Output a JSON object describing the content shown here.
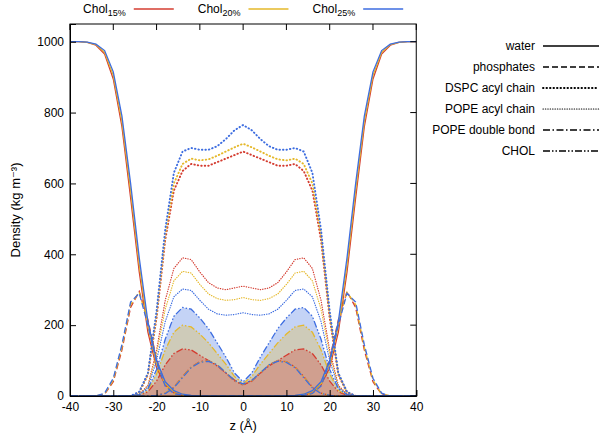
{
  "chart_data": {
    "type": "line",
    "x_label": "z (Å)",
    "y_label": "Density (kg m⁻³)",
    "x": [
      -40,
      -38,
      -36,
      -34,
      -32,
      -30,
      -28,
      -26,
      -24,
      -22,
      -20,
      -18,
      -16,
      -14,
      -12,
      -10,
      -8,
      -6,
      -4,
      -2,
      0,
      2,
      4,
      6,
      8,
      10,
      12,
      14,
      16,
      18,
      20,
      22,
      24,
      26,
      28,
      30,
      32,
      34,
      36,
      38,
      40
    ],
    "xlim": [
      -40,
      40
    ],
    "xticks": [
      -40,
      -30,
      -20,
      -10,
      0,
      10,
      20,
      30,
      40
    ],
    "ylim": [
      0,
      1050
    ],
    "yticks": [
      0,
      200,
      400,
      600,
      800,
      1000
    ],
    "grid": false,
    "legend": "top",
    "series": [
      {
        "name": "Chol15%",
        "color": "#d43c30",
        "components": [
          {
            "name": "water",
            "line_style": "solid",
            "values": [
              1000,
              1000,
              998,
              990,
              965,
              895,
              760,
              560,
              350,
              180,
              80,
              32,
              12,
              4,
              1,
              0,
              0,
              0,
              0,
              0,
              0,
              0,
              0,
              0,
              0,
              0,
              1,
              4,
              12,
              32,
              80,
              180,
              350,
              560,
              760,
              895,
              965,
              990,
              998,
              1000,
              1000
            ]
          },
          {
            "name": "phosphates",
            "line_style": "dashed",
            "values": [
              0,
              0,
              0,
              0,
              5,
              40,
              130,
              250,
              295,
              215,
              105,
              32,
              8,
              2,
              0,
              0,
              0,
              0,
              0,
              0,
              0,
              0,
              0,
              0,
              0,
              0,
              0,
              2,
              8,
              32,
              105,
              215,
              295,
              250,
              130,
              40,
              5,
              0,
              0,
              0,
              0
            ]
          },
          {
            "name": "DSPC acyl chain",
            "line_style": "dotted",
            "values": [
              0,
              0,
              0,
              0,
              0,
              0,
              0,
              0,
              10,
              60,
              220,
              440,
              580,
              635,
              655,
              650,
              650,
              660,
              670,
              680,
              690,
              680,
              670,
              660,
              650,
              650,
              655,
              635,
              580,
              440,
              220,
              60,
              10,
              0,
              0,
              0,
              0,
              0,
              0,
              0,
              0
            ]
          },
          {
            "name": "POPE acyl chain",
            "line_style": "fine-dotted",
            "values": [
              0,
              0,
              0,
              0,
              0,
              0,
              0,
              0,
              5,
              30,
              130,
              270,
              360,
              390,
              385,
              350,
              320,
              305,
              300,
              305,
              310,
              305,
              300,
              305,
              320,
              350,
              385,
              390,
              360,
              270,
              130,
              30,
              5,
              0,
              0,
              0,
              0,
              0,
              0,
              0,
              0
            ]
          },
          {
            "name": "POPE double bond",
            "line_style": "dash-dot",
            "values": [
              0,
              0,
              0,
              0,
              0,
              0,
              0,
              0,
              0,
              0,
              2,
              8,
              25,
              55,
              82,
              97,
              100,
              88,
              65,
              42,
              32,
              42,
              65,
              88,
              100,
              97,
              82,
              55,
              25,
              8,
              2,
              0,
              0,
              0,
              0,
              0,
              0,
              0,
              0,
              0,
              0
            ]
          },
          {
            "name": "CHOL",
            "line_style": "dash-dot-dot",
            "type": "area",
            "values": [
              0,
              0,
              0,
              0,
              0,
              0,
              0,
              0,
              2,
              12,
              42,
              88,
              120,
              133,
              130,
              115,
              100,
              85,
              65,
              45,
              30,
              45,
              65,
              85,
              100,
              115,
              130,
              133,
              120,
              88,
              42,
              12,
              2,
              0,
              0,
              0,
              0,
              0,
              0,
              0,
              0
            ]
          }
        ]
      },
      {
        "name": "Chol20%",
        "color": "#e5b82a",
        "components": [
          {
            "name": "water",
            "line_style": "solid",
            "values": [
              1000,
              1000,
              998,
              992,
              970,
              905,
              775,
              580,
              370,
              195,
              90,
              36,
              13,
              5,
              1,
              0,
              0,
              0,
              0,
              0,
              0,
              0,
              0,
              0,
              0,
              0,
              1,
              5,
              13,
              36,
              90,
              195,
              370,
              580,
              775,
              905,
              970,
              992,
              998,
              1000,
              1000
            ]
          },
          {
            "name": "phosphates",
            "line_style": "dashed",
            "values": [
              0,
              0,
              0,
              0,
              6,
              45,
              138,
              258,
              293,
              208,
              100,
              30,
              7,
              2,
              0,
              0,
              0,
              0,
              0,
              0,
              0,
              0,
              0,
              0,
              0,
              0,
              0,
              2,
              7,
              30,
              100,
              208,
              293,
              258,
              138,
              45,
              6,
              0,
              0,
              0,
              0
            ]
          },
          {
            "name": "DSPC acyl chain",
            "line_style": "dotted",
            "values": [
              0,
              0,
              0,
              0,
              0,
              0,
              0,
              0,
              10,
              62,
              230,
              455,
              600,
              655,
              670,
              665,
              668,
              678,
              690,
              702,
              712,
              702,
              690,
              678,
              668,
              665,
              670,
              655,
              600,
              455,
              230,
              62,
              10,
              0,
              0,
              0,
              0,
              0,
              0,
              0,
              0
            ]
          },
          {
            "name": "POPE acyl chain",
            "line_style": "fine-dotted",
            "values": [
              0,
              0,
              0,
              0,
              0,
              0,
              0,
              0,
              4,
              27,
              118,
              245,
              325,
              352,
              347,
              315,
              288,
              275,
              270,
              272,
              278,
              272,
              270,
              275,
              288,
              315,
              347,
              352,
              325,
              245,
              118,
              27,
              4,
              0,
              0,
              0,
              0,
              0,
              0,
              0,
              0
            ]
          },
          {
            "name": "POPE double bond",
            "line_style": "dash-dot",
            "values": [
              0,
              0,
              0,
              0,
              0,
              0,
              0,
              0,
              0,
              0,
              2,
              8,
              24,
              54,
              81,
              96,
              99,
              88,
              66,
              43,
              33,
              43,
              66,
              88,
              99,
              96,
              81,
              54,
              24,
              8,
              2,
              0,
              0,
              0,
              0,
              0,
              0,
              0,
              0,
              0,
              0
            ]
          },
          {
            "name": "CHOL",
            "line_style": "dash-dot-dot",
            "type": "area",
            "values": [
              0,
              0,
              0,
              0,
              0,
              0,
              0,
              0,
              3,
              16,
              62,
              130,
              180,
              200,
              195,
              175,
              150,
              120,
              90,
              55,
              35,
              55,
              90,
              120,
              150,
              175,
              195,
              200,
              180,
              130,
              62,
              16,
              3,
              0,
              0,
              0,
              0,
              0,
              0,
              0,
              0
            ]
          }
        ]
      },
      {
        "name": "Chol25%",
        "color": "#3d6de0",
        "components": [
          {
            "name": "water",
            "line_style": "solid",
            "values": [
              1000,
              1000,
              999,
              993,
              975,
              915,
              790,
              600,
              390,
              210,
              100,
              40,
              15,
              5,
              2,
              0,
              0,
              0,
              0,
              0,
              0,
              0,
              0,
              0,
              0,
              0,
              2,
              5,
              15,
              40,
              100,
              210,
              390,
              600,
              790,
              915,
              975,
              993,
              999,
              1000,
              1000
            ]
          },
          {
            "name": "phosphates",
            "line_style": "dashed",
            "values": [
              0,
              0,
              0,
              0,
              8,
              50,
              145,
              265,
              290,
              200,
              95,
              28,
              7,
              2,
              0,
              0,
              0,
              0,
              0,
              0,
              0,
              0,
              0,
              0,
              0,
              0,
              0,
              2,
              7,
              28,
              95,
              200,
              290,
              265,
              145,
              50,
              8,
              0,
              0,
              0,
              0
            ]
          },
          {
            "name": "DSPC acyl chain",
            "line_style": "dotted",
            "values": [
              0,
              0,
              0,
              0,
              0,
              0,
              0,
              0,
              12,
              65,
              240,
              470,
              630,
              690,
              700,
              695,
              695,
              705,
              725,
              750,
              765,
              750,
              725,
              705,
              695,
              695,
              700,
              690,
              630,
              470,
              240,
              65,
              12,
              0,
              0,
              0,
              0,
              0,
              0,
              0,
              0
            ]
          },
          {
            "name": "POPE acyl chain",
            "line_style": "fine-dotted",
            "values": [
              0,
              0,
              0,
              0,
              0,
              0,
              0,
              0,
              4,
              24,
              100,
              210,
              280,
              302,
              298,
              270,
              245,
              232,
              228,
              230,
              235,
              230,
              228,
              232,
              245,
              270,
              298,
              302,
              280,
              210,
              100,
              24,
              4,
              0,
              0,
              0,
              0,
              0,
              0,
              0,
              0
            ]
          },
          {
            "name": "POPE double bond",
            "line_style": "dash-dot",
            "values": [
              0,
              0,
              0,
              0,
              0,
              0,
              0,
              0,
              0,
              0,
              2,
              7,
              23,
              52,
              80,
              95,
              98,
              88,
              66,
              44,
              34,
              44,
              66,
              88,
              98,
              95,
              80,
              52,
              23,
              7,
              2,
              0,
              0,
              0,
              0,
              0,
              0,
              0,
              0,
              0,
              0
            ]
          },
          {
            "name": "CHOL",
            "line_style": "dash-dot-dot",
            "type": "area",
            "values": [
              0,
              0,
              0,
              0,
              0,
              0,
              0,
              0,
              4,
              20,
              75,
              160,
              225,
              250,
              245,
              220,
              190,
              150,
              110,
              65,
              40,
              65,
              110,
              150,
              190,
              220,
              245,
              250,
              225,
              160,
              75,
              20,
              4,
              0,
              0,
              0,
              0,
              0,
              0,
              0,
              0
            ]
          }
        ]
      }
    ]
  }
}
